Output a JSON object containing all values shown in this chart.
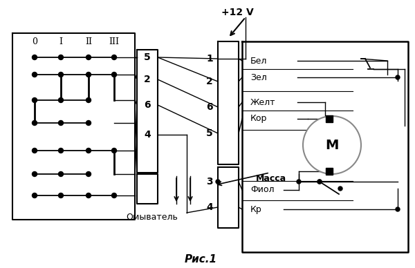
{
  "title": "Рис.1",
  "fig_width": 6.0,
  "fig_height": 3.88,
  "bg_color": "#ffffff",
  "line_color": "#000000",
  "voltage_label": "+12 V",
  "massa_label": "Масса",
  "omyvatel_label": "Омыватель",
  "motor_label": "М",
  "connector_labels": [
    "0",
    "I",
    "II",
    "III"
  ],
  "left_pin_numbers": [
    "5",
    "2",
    "6",
    "4"
  ],
  "right_pin_numbers": [
    "1",
    "2",
    "6",
    "5",
    "3",
    "4"
  ],
  "wire_labels": [
    "Бел",
    "Зел",
    "Желт",
    "Кор",
    "Фиол",
    "Кр"
  ]
}
